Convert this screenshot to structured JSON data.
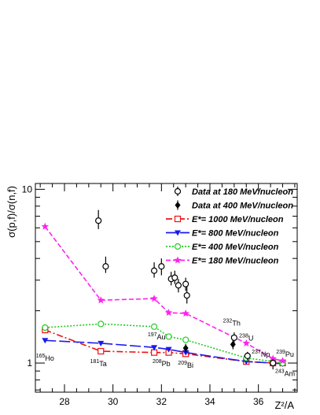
{
  "chart_data": {
    "type": "scatter",
    "xlabel": "Z²/A",
    "ylabel": "σ(p,f)/σ(n,f)",
    "xlim": [
      26.8,
      37.6
    ],
    "ylim": [
      0.68,
      10.8
    ],
    "yscale": "log",
    "xticks": [
      28,
      30,
      32,
      34,
      36
    ],
    "yticks": [
      1,
      10
    ],
    "grid": false,
    "legend_position": "top-right",
    "legend": [
      "Data at 180 MeV/nucleon",
      "Data at 400 MeV/nucleon",
      "E*= 1000 MeV/nucleon",
      "E*= 800 MeV/nucleon",
      "E*= 400 MeV/nucleon",
      "E*= 180 MeV/nucleon"
    ],
    "data_points": [
      {
        "name": "Data at 180 MeV/nucleon",
        "marker": "open-circle",
        "color": "#000000",
        "points": [
          {
            "x": 29.4,
            "y": 6.6,
            "yerr_lo": 0.7,
            "yerr_hi": 1.0
          },
          {
            "x": 29.7,
            "y": 3.6,
            "yerr_lo": 0.3,
            "yerr_hi": 0.5
          },
          {
            "x": 31.7,
            "y": 3.4,
            "yerr_lo": 0.3,
            "yerr_hi": 0.4
          },
          {
            "x": 32.0,
            "y": 3.6,
            "yerr_lo": 0.4,
            "yerr_hi": 0.4
          },
          {
            "x": 32.4,
            "y": 3.05,
            "yerr_lo": 0.25,
            "yerr_hi": 0.3
          },
          {
            "x": 32.55,
            "y": 3.1,
            "yerr_lo": 0.25,
            "yerr_hi": 0.3
          },
          {
            "x": 32.7,
            "y": 2.8,
            "yerr_lo": 0.25,
            "yerr_hi": 0.25
          },
          {
            "x": 33.0,
            "y": 2.85,
            "yerr_lo": 0.25,
            "yerr_hi": 0.25
          },
          {
            "x": 33.05,
            "y": 2.45,
            "yerr_lo": 0.25,
            "yerr_hi": 0.3
          },
          {
            "x": 35.0,
            "y": 1.4,
            "yerr_lo": 0.1,
            "yerr_hi": 0.1
          },
          {
            "x": 35.55,
            "y": 1.1,
            "yerr_lo": 0.06,
            "yerr_hi": 0.06
          },
          {
            "x": 36.6,
            "y": 1.0,
            "yerr_lo": 0.08,
            "yerr_hi": 0.05
          }
        ]
      },
      {
        "name": "Data at 400 MeV/nucleon",
        "marker": "filled-diamond",
        "color": "#000000",
        "points": [
          {
            "x": 33.0,
            "y": 1.22,
            "yerr_lo": 0.07,
            "yerr_hi": 0.07
          },
          {
            "x": 34.95,
            "y": 1.28,
            "yerr_lo": 0.08,
            "yerr_hi": 0.08
          }
        ]
      }
    ],
    "series": [
      {
        "name": "E*= 1000 MeV/nucleon",
        "color": "#ee1111",
        "dash": "8,3,2,3",
        "marker": "open-square",
        "x": [
          27.2,
          29.5,
          31.7,
          32.3,
          33.0,
          35.5,
          36.6,
          37.0
        ],
        "y": [
          1.55,
          1.17,
          1.15,
          1.15,
          1.13,
          1.02,
          1.0,
          1.0
        ]
      },
      {
        "name": "E*= 800 MeV/nucleon",
        "color": "#1a1aee",
        "dash": "14,4",
        "marker": "filled-triangle-down",
        "x": [
          27.2,
          29.5,
          31.7,
          32.3,
          33.0,
          35.5,
          36.6,
          37.0
        ],
        "y": [
          1.35,
          1.3,
          1.23,
          1.2,
          1.15,
          1.02,
          1.0,
          0.99
        ]
      },
      {
        "name": "E*= 400 MeV/nucleon",
        "color": "#22cc22",
        "dash": "2,2",
        "marker": "open-circle",
        "x": [
          27.2,
          29.5,
          31.7,
          32.3,
          33.0,
          35.5,
          36.6,
          37.0
        ],
        "y": [
          1.6,
          1.68,
          1.62,
          1.42,
          1.36,
          1.07,
          1.02,
          1.0
        ]
      },
      {
        "name": "E*= 180 MeV/nucleon",
        "color": "#ff22ee",
        "dash": "6,3",
        "marker": "star",
        "x": [
          27.2,
          29.5,
          31.7,
          32.3,
          33.0,
          35.5,
          36.6,
          37.0
        ],
        "y": [
          6.1,
          2.3,
          2.35,
          1.95,
          1.93,
          1.3,
          1.06,
          1.03
        ]
      }
    ],
    "annotations": [
      {
        "nucleus": "Ho",
        "mass": "165",
        "x": 27.2,
        "y": 1.03
      },
      {
        "nucleus": "Ta",
        "mass": "181",
        "x": 29.4,
        "y": 0.96
      },
      {
        "nucleus": "Au",
        "mass": "197",
        "x": 31.8,
        "y": 1.37
      },
      {
        "nucleus": "Pb",
        "mass": "208",
        "x": 32.0,
        "y": 0.96
      },
      {
        "nucleus": "Bi",
        "mass": "209",
        "x": 33.0,
        "y": 0.94
      },
      {
        "nucleus": "Th",
        "mass": "232",
        "x": 34.9,
        "y": 1.64
      },
      {
        "nucleus": "U",
        "mass": "238",
        "x": 35.5,
        "y": 1.35
      },
      {
        "nucleus": "Np",
        "mass": "237",
        "x": 36.1,
        "y": 1.09
      },
      {
        "nucleus": "Pu",
        "mass": "239",
        "x": 37.1,
        "y": 1.09
      },
      {
        "nucleus": "Am",
        "mass": "243",
        "x": 37.1,
        "y": 0.84
      }
    ]
  }
}
